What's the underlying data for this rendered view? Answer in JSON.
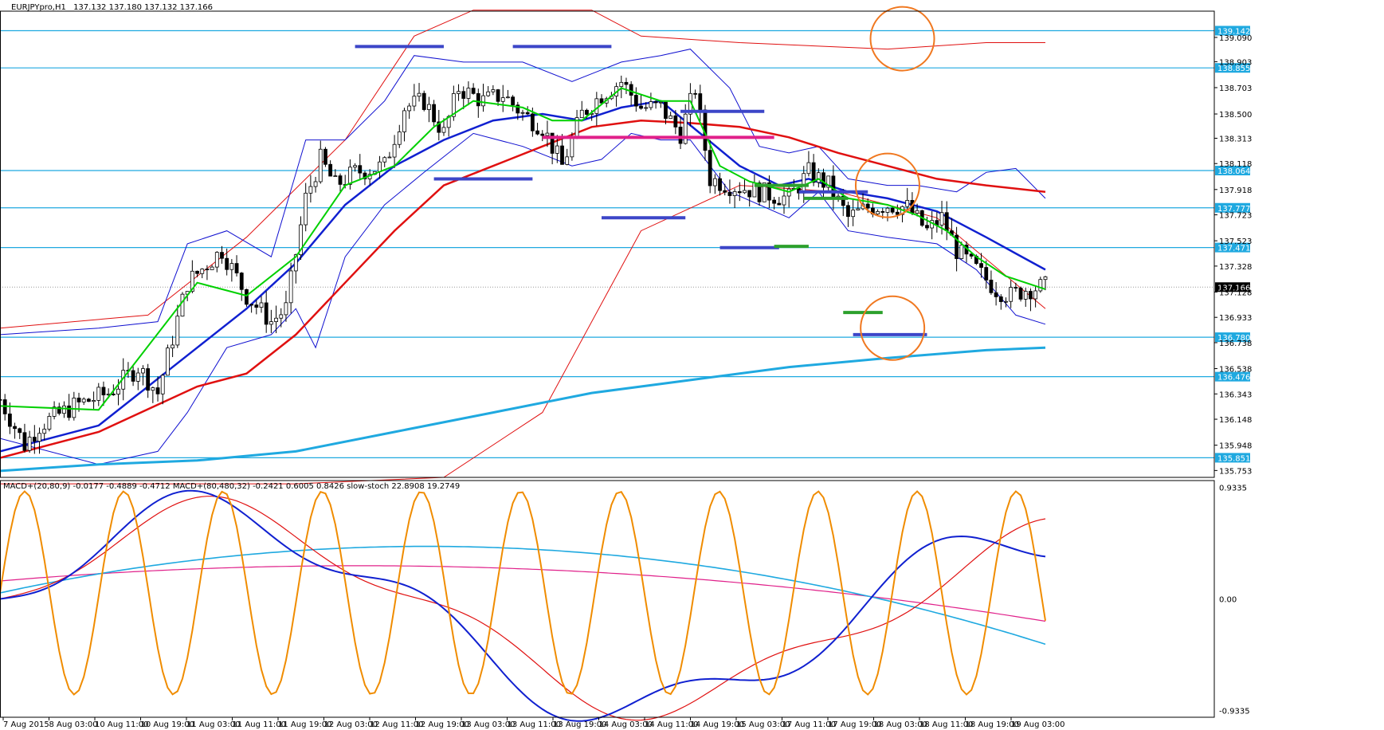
{
  "header": {
    "symbol_timeframe": "EURJPYpro,H1",
    "ohlc": "137.132 137.180 137.132 137.166"
  },
  "indicator_header": {
    "text": "MACD+(20,80,9) -0.0177 -0.4889 -0.4712 MACD+(80,480,32) -0.2421 0.6005 0.8426 slow-stoch 22.8908 19.2749"
  },
  "colors": {
    "level_line": "#1fa9e0",
    "level_tag": "#1fa9e0",
    "current_tag": "#000000",
    "bb_upper_lower": "#1010d0",
    "ma_green": "#00d000",
    "ma_blue": "#1020d0",
    "ma_red": "#e01010",
    "ma_cyan": "#1fa9e0",
    "zone_blue": "#3c46c8",
    "zone_green": "#2ca02c",
    "zone_magenta": "#e0208a",
    "circle": "#f07820",
    "stoch": "#f08c00",
    "macd_fast": "#1020d0",
    "macd_fast_signal": "#e01010",
    "macd_slow": "#1fa9e0",
    "macd_slow_signal": "#e0208a"
  },
  "chart_data": {
    "type": "candlestick",
    "ylim": [
      135.7,
      139.28
    ],
    "price_ticks": [
      "139.090",
      "138.903",
      "138.703",
      "138.500",
      "138.313",
      "138.118",
      "137.918",
      "137.723",
      "137.523",
      "137.328",
      "137.128",
      "136.933",
      "136.738",
      "136.538",
      "136.343",
      "136.148",
      "135.948",
      "135.753"
    ],
    "level_tags": [
      "139.142",
      "138.855",
      "138.064",
      "137.777",
      "137.471",
      "136.780",
      "136.476",
      "135.851"
    ],
    "current_price": "137.166",
    "x_ticks": [
      "7 Aug 2015",
      "8 Aug 03:00",
      "10 Aug 11:00",
      "10 Aug 19:00",
      "11 Aug 03:00",
      "11 Aug 11:00",
      "11 Aug 19:00",
      "12 Aug 03:00",
      "12 Aug 11:00",
      "12 Aug 19:00",
      "13 Aug 03:00",
      "13 Aug 11:00",
      "13 Aug 19:00",
      "14 Aug 03:00",
      "14 Aug 11:00",
      "14 Aug 19:00",
      "15 Aug 03:00",
      "17 Aug 11:00",
      "17 Aug 19:00",
      "18 Aug 03:00",
      "18 Aug 11:00",
      "18 Aug 19:00",
      "19 Aug 03:00"
    ],
    "candle_anchors": [
      [
        0,
        136.3
      ],
      [
        5,
        135.95
      ],
      [
        8,
        136.1
      ],
      [
        15,
        136.25
      ],
      [
        22,
        136.35
      ],
      [
        28,
        136.55
      ],
      [
        32,
        136.35
      ],
      [
        38,
        137.2
      ],
      [
        45,
        137.45
      ],
      [
        50,
        137.1
      ],
      [
        55,
        136.9
      ],
      [
        58,
        137.0
      ],
      [
        62,
        137.85
      ],
      [
        65,
        138.15
      ],
      [
        68,
        137.95
      ],
      [
        72,
        138.05
      ],
      [
        78,
        138.1
      ],
      [
        82,
        138.55
      ],
      [
        86,
        138.6
      ],
      [
        90,
        138.35
      ],
      [
        93,
        138.7
      ],
      [
        98,
        138.6
      ],
      [
        102,
        138.65
      ],
      [
        106,
        138.5
      ],
      [
        110,
        138.4
      ],
      [
        114,
        138.1
      ],
      [
        118,
        138.5
      ],
      [
        122,
        138.65
      ],
      [
        126,
        138.75
      ],
      [
        130,
        138.55
      ],
      [
        134,
        138.55
      ],
      [
        138,
        138.35
      ],
      [
        141,
        138.7
      ],
      [
        144,
        138.0
      ],
      [
        148,
        137.95
      ],
      [
        152,
        137.92
      ],
      [
        156,
        137.88
      ],
      [
        160,
        137.85
      ],
      [
        164,
        138.05
      ],
      [
        168,
        137.95
      ],
      [
        172,
        137.7
      ],
      [
        176,
        137.78
      ],
      [
        180,
        137.8
      ],
      [
        184,
        137.78
      ],
      [
        188,
        137.6
      ],
      [
        191,
        137.7
      ],
      [
        194,
        137.45
      ],
      [
        198,
        137.3
      ],
      [
        202,
        137.15
      ],
      [
        205,
        137.1
      ],
      [
        208,
        137.15
      ],
      [
        212,
        137.17
      ]
    ],
    "ma_green": [
      [
        0,
        136.25
      ],
      [
        20,
        136.22
      ],
      [
        40,
        137.2
      ],
      [
        50,
        137.1
      ],
      [
        60,
        137.4
      ],
      [
        70,
        137.95
      ],
      [
        80,
        138.1
      ],
      [
        88,
        138.4
      ],
      [
        96,
        138.6
      ],
      [
        106,
        138.55
      ],
      [
        112,
        138.45
      ],
      [
        118,
        138.45
      ],
      [
        126,
        138.7
      ],
      [
        134,
        138.6
      ],
      [
        140,
        138.6
      ],
      [
        146,
        138.1
      ],
      [
        152,
        137.98
      ],
      [
        160,
        137.9
      ],
      [
        166,
        138.0
      ],
      [
        172,
        137.85
      ],
      [
        180,
        137.8
      ],
      [
        186,
        137.72
      ],
      [
        192,
        137.6
      ],
      [
        198,
        137.4
      ],
      [
        204,
        137.25
      ],
      [
        212,
        137.15
      ]
    ],
    "ma_blue": [
      [
        0,
        135.9
      ],
      [
        20,
        136.1
      ],
      [
        40,
        136.7
      ],
      [
        50,
        137.0
      ],
      [
        60,
        137.35
      ],
      [
        70,
        137.8
      ],
      [
        80,
        138.1
      ],
      [
        90,
        138.3
      ],
      [
        100,
        138.45
      ],
      [
        110,
        138.5
      ],
      [
        118,
        138.45
      ],
      [
        126,
        138.55
      ],
      [
        134,
        138.6
      ],
      [
        142,
        138.35
      ],
      [
        150,
        138.1
      ],
      [
        158,
        137.95
      ],
      [
        164,
        138.0
      ],
      [
        172,
        137.9
      ],
      [
        180,
        137.85
      ],
      [
        190,
        137.75
      ],
      [
        200,
        137.55
      ],
      [
        212,
        137.3
      ]
    ],
    "ma_red": [
      [
        0,
        135.85
      ],
      [
        20,
        136.05
      ],
      [
        40,
        136.4
      ],
      [
        50,
        136.5
      ],
      [
        60,
        136.8
      ],
      [
        70,
        137.2
      ],
      [
        80,
        137.6
      ],
      [
        90,
        137.95
      ],
      [
        100,
        138.1
      ],
      [
        110,
        138.25
      ],
      [
        120,
        138.4
      ],
      [
        130,
        138.45
      ],
      [
        140,
        138.43
      ],
      [
        150,
        138.4
      ],
      [
        160,
        138.32
      ],
      [
        170,
        138.2
      ],
      [
        180,
        138.1
      ],
      [
        190,
        138.0
      ],
      [
        200,
        137.95
      ],
      [
        212,
        137.9
      ]
    ],
    "ma_cyan": [
      [
        0,
        135.75
      ],
      [
        20,
        135.8
      ],
      [
        40,
        135.83
      ],
      [
        60,
        135.9
      ],
      [
        80,
        136.05
      ],
      [
        100,
        136.2
      ],
      [
        120,
        136.35
      ],
      [
        140,
        136.45
      ],
      [
        160,
        136.55
      ],
      [
        180,
        136.62
      ],
      [
        200,
        136.68
      ],
      [
        212,
        136.7
      ]
    ],
    "bb_upper": [
      [
        0,
        136.8
      ],
      [
        20,
        136.85
      ],
      [
        32,
        136.9
      ],
      [
        38,
        137.5
      ],
      [
        46,
        137.6
      ],
      [
        55,
        137.4
      ],
      [
        62,
        138.3
      ],
      [
        70,
        138.3
      ],
      [
        78,
        138.6
      ],
      [
        84,
        138.95
      ],
      [
        94,
        138.9
      ],
      [
        106,
        138.9
      ],
      [
        116,
        138.75
      ],
      [
        126,
        138.9
      ],
      [
        134,
        138.95
      ],
      [
        140,
        139.0
      ],
      [
        148,
        138.7
      ],
      [
        154,
        138.25
      ],
      [
        160,
        138.2
      ],
      [
        166,
        138.25
      ],
      [
        172,
        138.0
      ],
      [
        180,
        137.95
      ],
      [
        186,
        137.95
      ],
      [
        194,
        137.9
      ],
      [
        200,
        138.05
      ],
      [
        206,
        138.08
      ],
      [
        212,
        137.85
      ]
    ],
    "bb_lower": [
      [
        0,
        136.0
      ],
      [
        20,
        135.8
      ],
      [
        32,
        135.9
      ],
      [
        38,
        136.2
      ],
      [
        46,
        136.7
      ],
      [
        55,
        136.8
      ],
      [
        60,
        137.0
      ],
      [
        64,
        136.7
      ],
      [
        70,
        137.4
      ],
      [
        78,
        137.8
      ],
      [
        86,
        138.05
      ],
      [
        96,
        138.35
      ],
      [
        106,
        138.25
      ],
      [
        116,
        138.1
      ],
      [
        122,
        138.15
      ],
      [
        128,
        138.35
      ],
      [
        134,
        138.3
      ],
      [
        140,
        138.3
      ],
      [
        148,
        137.9
      ],
      [
        154,
        137.8
      ],
      [
        160,
        137.7
      ],
      [
        166,
        137.9
      ],
      [
        172,
        137.6
      ],
      [
        180,
        137.55
      ],
      [
        190,
        137.5
      ],
      [
        198,
        137.3
      ],
      [
        206,
        136.95
      ],
      [
        212,
        136.88
      ]
    ],
    "env_red_upper": [
      [
        0,
        136.85
      ],
      [
        30,
        136.95
      ],
      [
        50,
        137.55
      ],
      [
        70,
        138.3
      ],
      [
        84,
        139.1
      ],
      [
        96,
        139.3
      ],
      [
        120,
        139.3
      ],
      [
        130,
        139.1
      ],
      [
        150,
        139.05
      ],
      [
        180,
        139.0
      ],
      [
        200,
        139.05
      ],
      [
        212,
        139.05
      ]
    ],
    "env_red_lower": [
      [
        0,
        135.65
      ],
      [
        60,
        135.65
      ],
      [
        90,
        135.7
      ],
      [
        110,
        136.2
      ],
      [
        130,
        137.6
      ],
      [
        150,
        137.95
      ],
      [
        170,
        137.9
      ],
      [
        190,
        137.7
      ],
      [
        212,
        137.0
      ]
    ],
    "zones_blue": [
      [
        [
          72,
          90
        ],
        139.02
      ],
      [
        [
          104,
          124
        ],
        139.02
      ],
      [
        [
          88,
          108
        ],
        138.0
      ],
      [
        [
          138,
          155
        ],
        138.52
      ],
      [
        [
          122,
          139
        ],
        137.7
      ],
      [
        [
          146,
          158
        ],
        137.47
      ],
      [
        [
          162,
          176
        ],
        137.9
      ],
      [
        [
          173,
          188
        ],
        136.8
      ]
    ],
    "zones_green": [
      [
        [
          153,
          164
        ],
        137.95
      ],
      [
        [
          163,
          172
        ],
        137.85
      ],
      [
        [
          157,
          164
        ],
        137.48
      ],
      [
        [
          171,
          179
        ],
        136.97
      ]
    ],
    "zones_magenta": [
      [
        [
          110,
          157
        ],
        138.32
      ]
    ],
    "circles": [
      [
        183,
        139.08
      ],
      [
        180,
        137.95
      ],
      [
        181,
        136.85
      ]
    ],
    "osc_ylim": [
      -0.99,
      0.99
    ],
    "osc_ticks": [
      "0.9335",
      "0.00",
      "-0.9335"
    ]
  }
}
